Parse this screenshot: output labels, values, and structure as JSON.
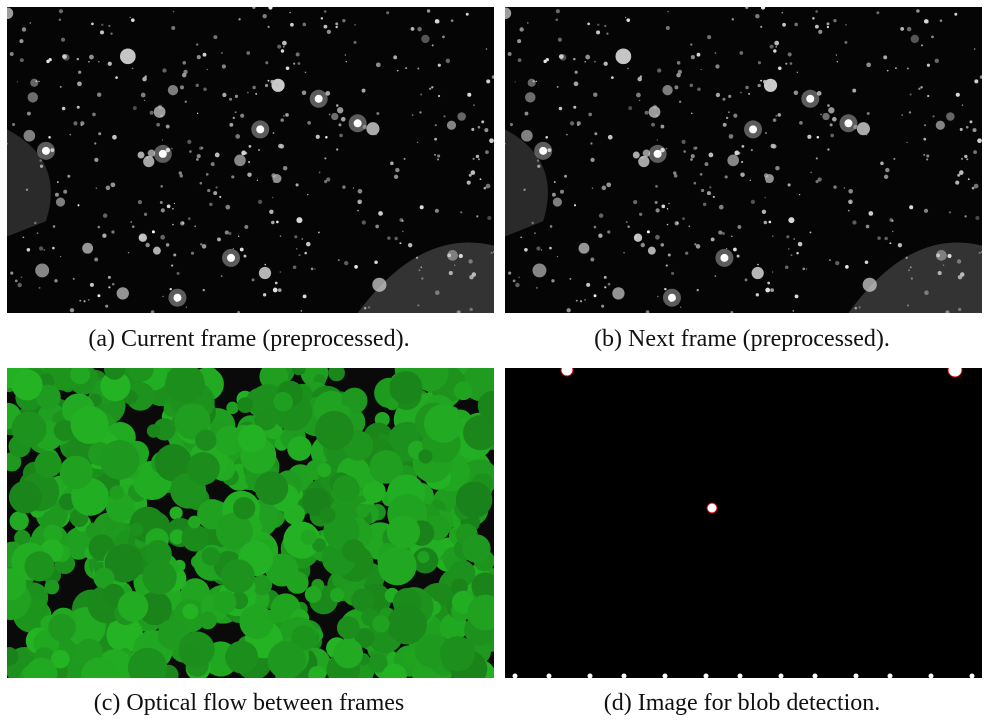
{
  "figure": {
    "panels": [
      {
        "caption": "(a) Current frame (preprocessed)."
      },
      {
        "caption": "(b) Next frame (preprocessed)."
      },
      {
        "caption": "(c) Optical flow between frames"
      },
      {
        "caption": "(d) Image for blob detection."
      }
    ]
  }
}
